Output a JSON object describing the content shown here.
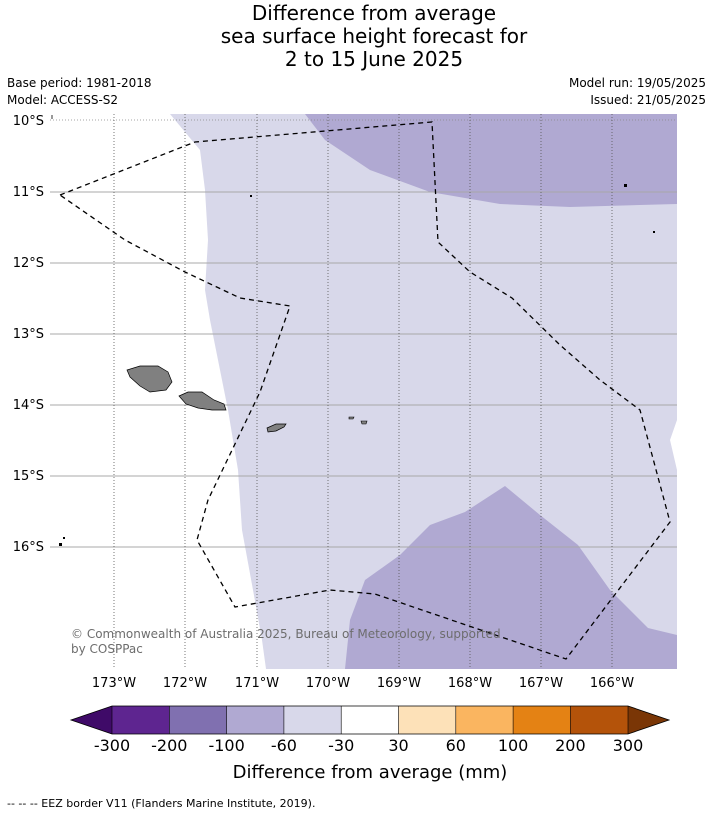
{
  "title_lines": [
    "Difference from average",
    "sea surface height forecast for",
    "2 to 15 June 2025"
  ],
  "base_period": "Base period: 1981-2018",
  "model": "Model: ACCESS-S2",
  "model_run": "Model run: 19/05/2025",
  "issued": "Issued: 21/05/2025",
  "lat_labels": [
    "10°S",
    "11°S",
    "12°S",
    "13°S",
    "14°S",
    "15°S",
    "16°S"
  ],
  "lon_labels": [
    "173°W",
    "172°W",
    "171°W",
    "170°W",
    "169°W",
    "168°W",
    "167°W",
    "166°W"
  ],
  "colorbar": {
    "bins": [
      {
        "color": "#3f0a68"
      },
      {
        "color": "#5e2590"
      },
      {
        "color": "#8070b0"
      },
      {
        "color": "#b0a9d2"
      },
      {
        "color": "#d8d8ea"
      },
      {
        "color": "#ffffff"
      },
      {
        "color": "#fde1b8"
      },
      {
        "color": "#fab560"
      },
      {
        "color": "#e48214"
      },
      {
        "color": "#b4530a"
      },
      {
        "color": "#7a3606"
      }
    ],
    "tick_labels": [
      "-300",
      "-200",
      "-100",
      "-60",
      "-30",
      "30",
      "60",
      "100",
      "200",
      "300"
    ],
    "label": "Difference from average (mm)"
  },
  "copyright": "© Commonwealth of Australia 2025, Bureau of Meteorology, supported by COSPPac",
  "footnote": "--  --  -- EEZ border V11 (Flanders Marine Institute, 2019)."
}
